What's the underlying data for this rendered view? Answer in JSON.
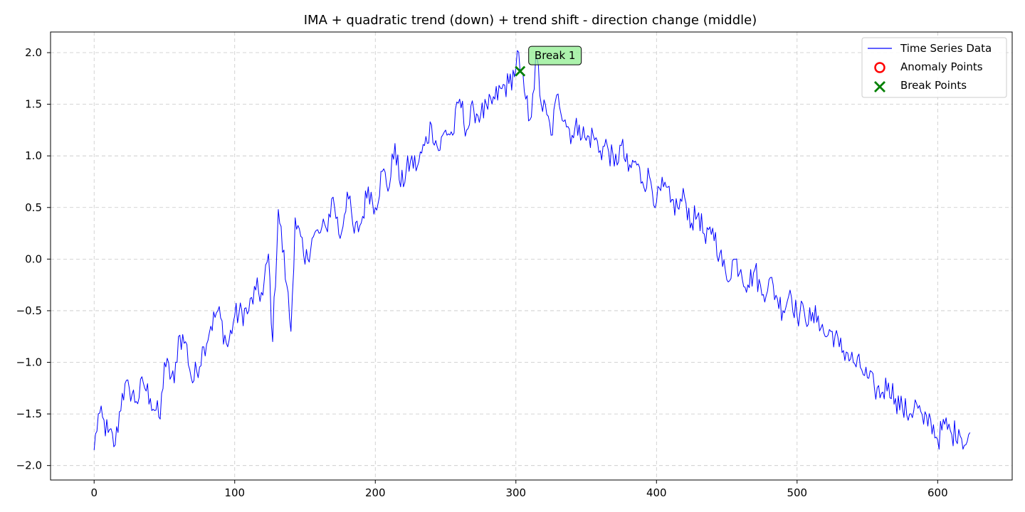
{
  "chart_data": {
    "type": "line",
    "title": "IMA + quadratic trend (down) + trend shift - direction change (middle)",
    "xlabel": "",
    "ylabel": "",
    "xlim": [
      -31,
      653
    ],
    "ylim": [
      -2.14,
      2.2
    ],
    "x_ticks": [
      0,
      100,
      200,
      300,
      400,
      500,
      600
    ],
    "y_ticks": [
      -2.0,
      -1.5,
      -1.0,
      -0.5,
      0.0,
      0.5,
      1.0,
      1.5,
      2.0
    ],
    "x_tick_labels": [
      "0",
      "100",
      "200",
      "300",
      "400",
      "500",
      "600"
    ],
    "y_tick_labels": [
      "−2.0",
      "−1.5",
      "−1.0",
      "−0.5",
      "0.0",
      "0.5",
      "1.0",
      "1.5",
      "2.0"
    ],
    "grid": true,
    "legend_position": "top-right",
    "series": [
      {
        "name": "Time Series Data",
        "color": "#0000ff",
        "x_start": 0,
        "x_step": 1,
        "anchors": [
          [
            0,
            -1.85
          ],
          [
            3,
            -1.5
          ],
          [
            10,
            -1.68
          ],
          [
            15,
            -1.8
          ],
          [
            20,
            -1.3
          ],
          [
            25,
            -1.25
          ],
          [
            30,
            -1.38
          ],
          [
            35,
            -1.2
          ],
          [
            40,
            -1.35
          ],
          [
            47,
            -1.55
          ],
          [
            50,
            -1.0
          ],
          [
            57,
            -1.2
          ],
          [
            60,
            -0.75
          ],
          [
            65,
            -0.8
          ],
          [
            70,
            -1.2
          ],
          [
            78,
            -0.85
          ],
          [
            83,
            -0.65
          ],
          [
            88,
            -0.5
          ],
          [
            95,
            -0.85
          ],
          [
            100,
            -0.55
          ],
          [
            110,
            -0.5
          ],
          [
            115,
            -0.3
          ],
          [
            120,
            -0.35
          ],
          [
            124,
            0.05
          ],
          [
            127,
            -0.8
          ],
          [
            131,
            0.48
          ],
          [
            137,
            -0.25
          ],
          [
            140,
            -0.7
          ],
          [
            143,
            0.4
          ],
          [
            150,
            -0.05
          ],
          [
            155,
            0.2
          ],
          [
            160,
            0.25
          ],
          [
            165,
            0.3
          ],
          [
            170,
            0.6
          ],
          [
            175,
            0.2
          ],
          [
            180,
            0.65
          ],
          [
            185,
            0.25
          ],
          [
            190,
            0.35
          ],
          [
            195,
            0.7
          ],
          [
            200,
            0.5
          ],
          [
            205,
            0.85
          ],
          [
            210,
            0.7
          ],
          [
            214,
            1.12
          ],
          [
            218,
            0.7
          ],
          [
            225,
            0.95
          ],
          [
            230,
            0.9
          ],
          [
            235,
            1.1
          ],
          [
            240,
            1.3
          ],
          [
            245,
            1.05
          ],
          [
            250,
            1.25
          ],
          [
            255,
            1.2
          ],
          [
            260,
            1.55
          ],
          [
            265,
            1.25
          ],
          [
            270,
            1.45
          ],
          [
            275,
            1.4
          ],
          [
            280,
            1.45
          ],
          [
            285,
            1.55
          ],
          [
            290,
            1.65
          ],
          [
            295,
            1.7
          ],
          [
            300,
            1.85
          ],
          [
            301,
            2.02
          ],
          [
            303,
            1.82
          ],
          [
            307,
            1.55
          ],
          [
            310,
            1.35
          ],
          [
            312,
            1.6
          ],
          [
            315,
            1.95
          ],
          [
            318,
            1.5
          ],
          [
            322,
            1.4
          ],
          [
            325,
            1.2
          ],
          [
            330,
            1.6
          ],
          [
            335,
            1.35
          ],
          [
            340,
            1.2
          ],
          [
            345,
            1.3
          ],
          [
            350,
            1.15
          ],
          [
            355,
            1.2
          ],
          [
            360,
            1.05
          ],
          [
            365,
            1.1
          ],
          [
            370,
            0.9
          ],
          [
            375,
            1.1
          ],
          [
            380,
            0.85
          ],
          [
            385,
            0.95
          ],
          [
            390,
            0.75
          ],
          [
            395,
            0.8
          ],
          [
            400,
            0.55
          ],
          [
            405,
            0.7
          ],
          [
            410,
            0.55
          ],
          [
            415,
            0.5
          ],
          [
            420,
            0.6
          ],
          [
            425,
            0.35
          ],
          [
            430,
            0.45
          ],
          [
            435,
            0.15
          ],
          [
            440,
            0.3
          ],
          [
            445,
            0.05
          ],
          [
            450,
            -0.2
          ],
          [
            455,
            0.0
          ],
          [
            460,
            -0.1
          ],
          [
            465,
            -0.25
          ],
          [
            470,
            -0.1
          ],
          [
            475,
            -0.35
          ],
          [
            480,
            -0.2
          ],
          [
            485,
            -0.35
          ],
          [
            490,
            -0.5
          ],
          [
            495,
            -0.3
          ],
          [
            500,
            -0.55
          ],
          [
            505,
            -0.5
          ],
          [
            510,
            -0.6
          ],
          [
            515,
            -0.55
          ],
          [
            520,
            -0.75
          ],
          [
            525,
            -0.7
          ],
          [
            530,
            -0.85
          ],
          [
            535,
            -0.9
          ],
          [
            540,
            -1.0
          ],
          [
            545,
            -1.05
          ],
          [
            550,
            -1.15
          ],
          [
            555,
            -1.25
          ],
          [
            560,
            -1.3
          ],
          [
            565,
            -1.2
          ],
          [
            570,
            -1.35
          ],
          [
            575,
            -1.45
          ],
          [
            580,
            -1.5
          ],
          [
            585,
            -1.4
          ],
          [
            590,
            -1.6
          ],
          [
            595,
            -1.55
          ],
          [
            600,
            -1.75
          ],
          [
            605,
            -1.6
          ],
          [
            610,
            -1.7
          ],
          [
            615,
            -1.65
          ],
          [
            620,
            -1.8
          ],
          [
            623,
            -1.68
          ]
        ],
        "noise_amplitude": 0.13,
        "points": 624
      },
      {
        "name": "Anomaly Points",
        "color": "#ff0000",
        "marker": "circle",
        "points": []
      },
      {
        "name": "Break Points",
        "color": "#008000",
        "marker": "x",
        "points": [
          [
            303,
            1.82
          ]
        ]
      }
    ],
    "annotations": [
      {
        "text": "Break 1",
        "x": 303,
        "y": 1.82,
        "box_color": "#90ee90"
      }
    ]
  }
}
